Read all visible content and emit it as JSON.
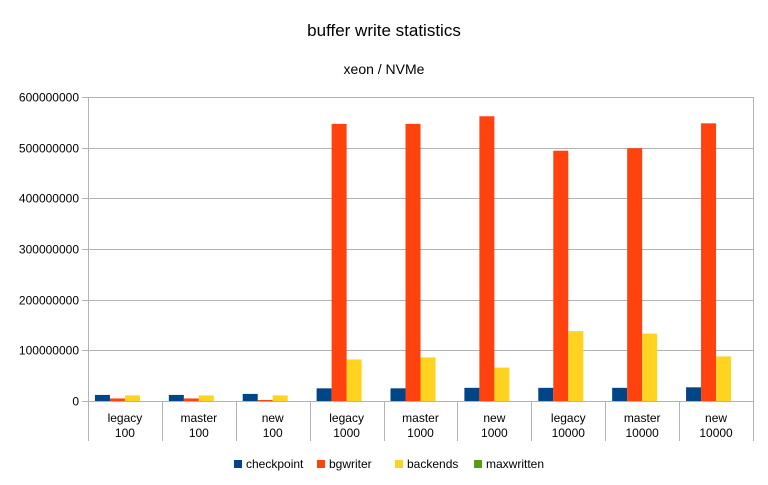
{
  "chart_data": {
    "type": "bar",
    "title": "buffer write statistics",
    "subtitle": "xeon / NVMe",
    "xlabel": "",
    "ylabel": "",
    "ylim": [
      0,
      600000000
    ],
    "yticks": [
      0,
      100000000,
      200000000,
      300000000,
      400000000,
      500000000,
      600000000
    ],
    "ytick_labels": [
      "0",
      "100000000",
      "200000000",
      "300000000",
      "400000000",
      "500000000",
      "600000000"
    ],
    "grid": true,
    "legend_position": "bottom",
    "categories": [
      [
        "legacy",
        "100"
      ],
      [
        "master",
        "100"
      ],
      [
        "new",
        "100"
      ],
      [
        "legacy",
        "1000"
      ],
      [
        "master",
        "1000"
      ],
      [
        "new",
        "1000"
      ],
      [
        "legacy",
        "10000"
      ],
      [
        "master",
        "10000"
      ],
      [
        "new",
        "10000"
      ]
    ],
    "series": [
      {
        "name": "checkpoint",
        "color": "#004586",
        "values": [
          12000000,
          12000000,
          14000000,
          25000000,
          25000000,
          26000000,
          26000000,
          26000000,
          27000000
        ]
      },
      {
        "name": "bgwriter",
        "color": "#ff420e",
        "values": [
          5000000,
          5000000,
          2000000,
          547000000,
          547000000,
          562000000,
          494000000,
          499000000,
          548000000
        ]
      },
      {
        "name": "backends",
        "color": "#ffd320",
        "values": [
          11000000,
          11000000,
          11000000,
          82000000,
          86000000,
          66000000,
          138000000,
          133000000,
          88000000
        ]
      },
      {
        "name": "maxwritten",
        "color": "#579d1c",
        "values": [
          0,
          0,
          0,
          0,
          0,
          0,
          0,
          0,
          0
        ]
      }
    ]
  }
}
